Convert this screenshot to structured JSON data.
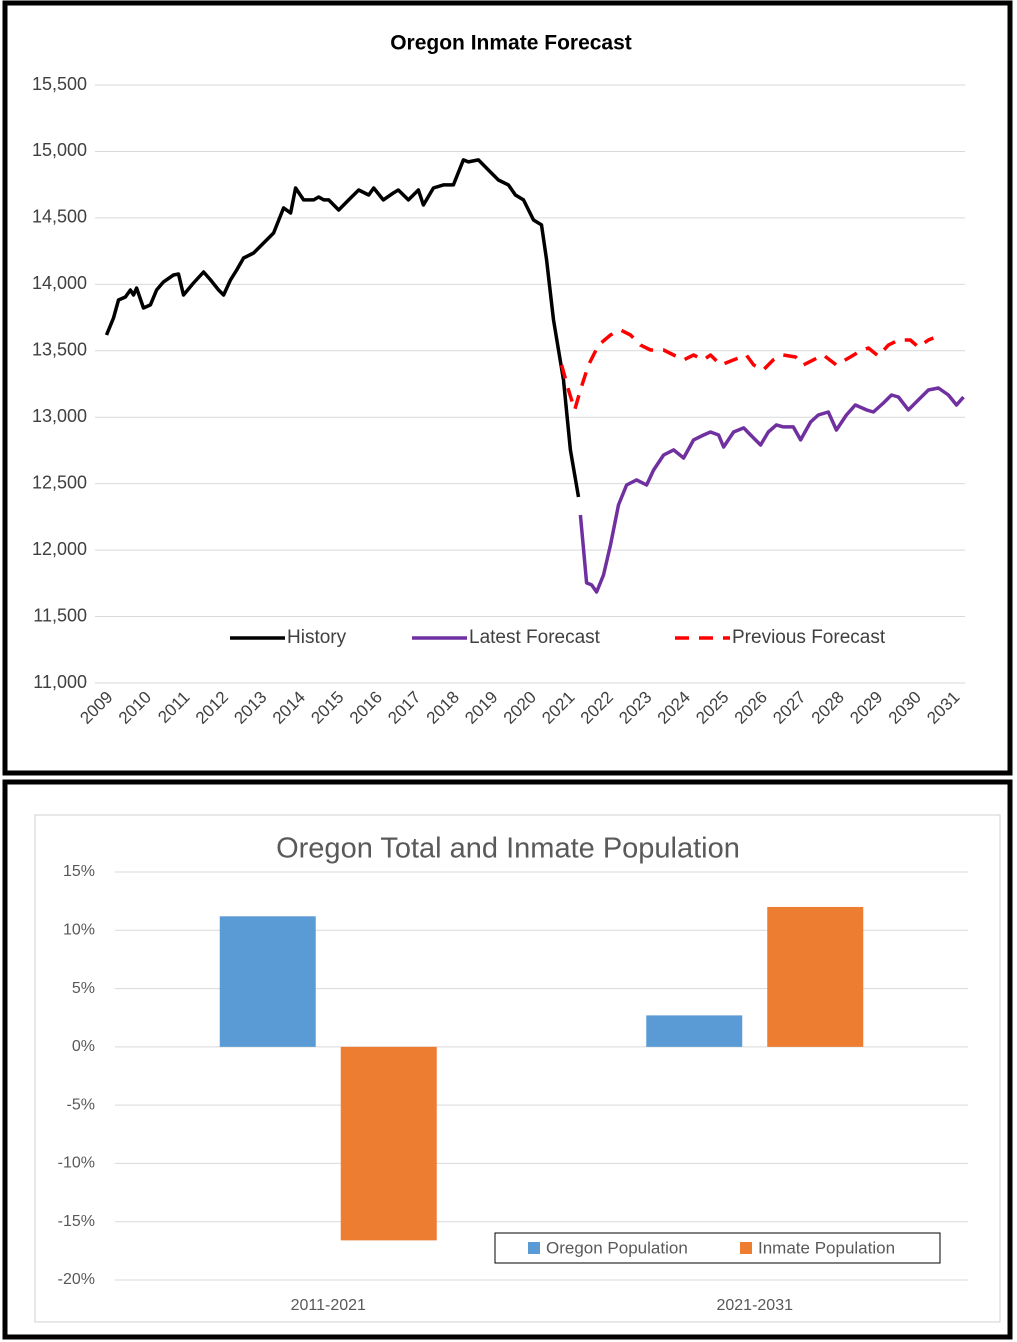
{
  "chart_data": [
    {
      "type": "line",
      "title": "Oregon Inmate Forecast",
      "ylim": [
        11000,
        15500
      ],
      "yticks": [
        {
          "value": 11000,
          "label": "11,000"
        },
        {
          "value": 11500,
          "label": "11,500"
        },
        {
          "value": 12000,
          "label": "12,000"
        },
        {
          "value": 12500,
          "label": "12,500"
        },
        {
          "value": 13000,
          "label": "13,000"
        },
        {
          "value": 13500,
          "label": "13,500"
        },
        {
          "value": 14000,
          "label": "14,000"
        },
        {
          "value": 14500,
          "label": "14,500"
        },
        {
          "value": 15000,
          "label": "15,000"
        },
        {
          "value": 15500,
          "label": "15,500"
        }
      ],
      "xlim": [
        2008.7,
        2031.3
      ],
      "xticks": [
        2009,
        2010,
        2011,
        2012,
        2013,
        2014,
        2015,
        2016,
        2017,
        2018,
        2019,
        2020,
        2021,
        2022,
        2023,
        2024,
        2025,
        2026,
        2027,
        2028,
        2029,
        2030,
        2031
      ],
      "grid": true,
      "legend": "bottom",
      "series": [
        {
          "name": "History",
          "color": "#000000",
          "style": "solid",
          "x": [
            2009.0,
            2009.18,
            2009.31,
            2009.49,
            2009.62,
            2009.7,
            2009.78,
            2009.96,
            2010.14,
            2010.3,
            2010.48,
            2010.74,
            2010.87,
            2011.0,
            2011.26,
            2011.52,
            2011.7,
            2011.91,
            2012.04,
            2012.22,
            2012.38,
            2012.56,
            2012.82,
            2013.08,
            2013.34,
            2013.6,
            2013.78,
            2013.91,
            2014.12,
            2014.38,
            2014.51,
            2014.64,
            2014.77,
            2015.03,
            2015.29,
            2015.55,
            2015.81,
            2015.94,
            2016.19,
            2016.45,
            2016.58,
            2016.84,
            2017.1,
            2017.23,
            2017.49,
            2017.75,
            2018.01,
            2018.27,
            2018.4,
            2018.66,
            2018.92,
            2019.18,
            2019.44,
            2019.62,
            2019.83,
            2020.09,
            2020.3,
            2020.43,
            2020.61,
            2020.87,
            2021.05,
            2021.26
          ],
          "values": [
            13619,
            13747,
            13882,
            13905,
            13957,
            13920,
            13972,
            13822,
            13845,
            13957,
            14018,
            14070,
            14078,
            13920,
            14010,
            14093,
            14033,
            13957,
            13920,
            14033,
            14108,
            14198,
            14236,
            14311,
            14386,
            14575,
            14537,
            14725,
            14635,
            14635,
            14657,
            14635,
            14635,
            14559,
            14635,
            14710,
            14672,
            14725,
            14635,
            14687,
            14710,
            14635,
            14710,
            14597,
            14725,
            14748,
            14748,
            14936,
            14921,
            14936,
            14860,
            14785,
            14748,
            14672,
            14635,
            14484,
            14447,
            14183,
            13732,
            13280,
            12754,
            12400
          ]
        },
        {
          "name": "Latest Forecast",
          "color": "#7030a0",
          "style": "solid",
          "x": [
            2021.31,
            2021.47,
            2021.6,
            2021.73,
            2021.91,
            2022.09,
            2022.3,
            2022.51,
            2022.77,
            2023.03,
            2023.21,
            2023.47,
            2023.73,
            2023.99,
            2024.25,
            2024.51,
            2024.69,
            2024.9,
            2025.03,
            2025.29,
            2025.55,
            2025.73,
            2025.99,
            2026.19,
            2026.4,
            2026.58,
            2026.84,
            2027.03,
            2027.29,
            2027.49,
            2027.75,
            2027.96,
            2028.22,
            2028.45,
            2028.74,
            2028.92,
            2029.18,
            2029.39,
            2029.57,
            2029.83,
            2030.09,
            2030.35,
            2030.61,
            2030.87,
            2031.08,
            2031.26
          ],
          "values": [
            12264,
            11753,
            11738,
            11685,
            11813,
            12039,
            12340,
            12490,
            12528,
            12490,
            12603,
            12716,
            12754,
            12693,
            12829,
            12866,
            12889,
            12866,
            12776,
            12889,
            12920,
            12866,
            12791,
            12889,
            12942,
            12927,
            12927,
            12829,
            12964,
            13017,
            13039,
            12904,
            13017,
            13092,
            13055,
            13039,
            13107,
            13167,
            13152,
            13055,
            13130,
            13205,
            13220,
            13167,
            13092,
            13152
          ]
        },
        {
          "name": "Previous Forecast",
          "color": "#ff0000",
          "style": "dashed",
          "x": [
            2020.82,
            2021.0,
            2021.16,
            2021.31,
            2021.52,
            2021.78,
            2022.09,
            2022.35,
            2022.61,
            2022.87,
            2023.13,
            2023.47,
            2023.73,
            2023.99,
            2024.25,
            2024.51,
            2024.69,
            2024.95,
            2025.29,
            2025.62,
            2025.81,
            2026.06,
            2026.32,
            2026.58,
            2026.9,
            2027.1,
            2027.36,
            2027.62,
            2027.96,
            2028.27,
            2028.53,
            2028.79,
            2029.05,
            2029.31,
            2029.57,
            2029.88,
            2030.09,
            2030.35,
            2030.48
          ],
          "values": [
            13393,
            13205,
            13055,
            13205,
            13393,
            13543,
            13619,
            13656,
            13619,
            13543,
            13506,
            13506,
            13468,
            13431,
            13468,
            13431,
            13468,
            13393,
            13431,
            13468,
            13393,
            13355,
            13431,
            13468,
            13453,
            13393,
            13431,
            13468,
            13393,
            13445,
            13490,
            13521,
            13460,
            13543,
            13581,
            13581,
            13528,
            13581,
            13596
          ]
        }
      ]
    },
    {
      "type": "bar",
      "title": "Oregon Total and Inmate Population",
      "categories": [
        "2011-2021",
        "2021-2031"
      ],
      "ylim": [
        -20,
        15
      ],
      "yticks": [
        {
          "value": -20,
          "label": "-20%"
        },
        {
          "value": -15,
          "label": "-15%"
        },
        {
          "value": -10,
          "label": "-10%"
        },
        {
          "value": -5,
          "label": "-5%"
        },
        {
          "value": 0,
          "label": "0%"
        },
        {
          "value": 5,
          "label": "5%"
        },
        {
          "value": 10,
          "label": "10%"
        },
        {
          "value": 15,
          "label": "15%"
        }
      ],
      "grid": true,
      "legend": "bottom-right",
      "series": [
        {
          "name": "Oregon Population",
          "color": "#5b9bd5",
          "values": [
            11.2,
            2.7
          ]
        },
        {
          "name": "Inmate Population",
          "color": "#ed7d31",
          "values": [
            -16.6,
            12.0
          ]
        }
      ]
    }
  ]
}
